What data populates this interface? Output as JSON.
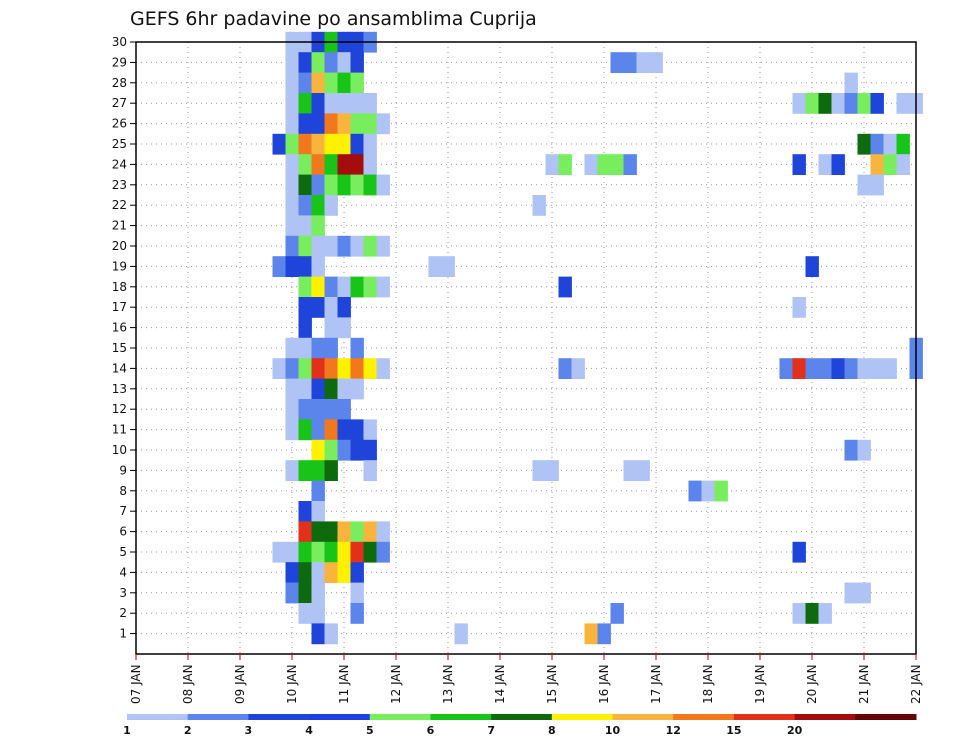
{
  "chart_data": {
    "type": "heatmap",
    "title": "GEFS 6hr padavine po ansamblima Cuprija",
    "xlabel": "",
    "ylabel": "",
    "x_tick_labels": [
      "07 JAN",
      "08 JAN",
      "09 JAN",
      "10 JAN",
      "11 JAN",
      "12 JAN",
      "13 JAN",
      "14 JAN",
      "15 JAN",
      "16 JAN",
      "17 JAN",
      "18 JAN",
      "19 JAN",
      "20 JAN",
      "21 JAN",
      "22 JAN"
    ],
    "y_tick_labels": [
      "1",
      "2",
      "3",
      "4",
      "5",
      "6",
      "7",
      "8",
      "9",
      "10",
      "11",
      "12",
      "13",
      "14",
      "15",
      "16",
      "17",
      "18",
      "19",
      "20",
      "21",
      "22",
      "23",
      "24",
      "25",
      "26",
      "27",
      "28",
      "29",
      "30"
    ],
    "xlim_days": [
      0,
      15
    ],
    "ylim_members": [
      0,
      30
    ],
    "grid": true,
    "legend_placement": "bottom",
    "legend": {
      "labels": [
        "1",
        "2",
        "3",
        "4",
        "5",
        "6",
        "7",
        "8",
        "10",
        "12",
        "15",
        "20"
      ],
      "colors": [
        "#afc3f5",
        "#5b85ea",
        "#1f44d9",
        "#1a40e0",
        "#78ee5f",
        "#19c419",
        "#0d6b0d",
        "#fff100",
        "#f8b43c",
        "#f2781d",
        "#e2301b",
        "#a50d0d",
        "#640505"
      ]
    },
    "bin_colors": {
      "1": "#afc3f5",
      "2": "#5b85ea",
      "3": "#1f44d9",
      "5": "#78ee5f",
      "6": "#19c419",
      "7": "#0d6b0d",
      "8": "#fff100",
      "10": "#f8b43c",
      "12": "#f2781d",
      "15": "#e2301b",
      "20": "#a50d0d"
    },
    "cells": [
      {
        "m": 30,
        "t": [
          [
            3.0,
            1
          ],
          [
            3.25,
            1
          ],
          [
            3.5,
            3
          ],
          [
            3.75,
            6
          ],
          [
            4.0,
            3
          ],
          [
            4.25,
            3
          ],
          [
            4.5,
            2
          ]
        ]
      },
      {
        "m": 29,
        "t": [
          [
            3.0,
            1
          ],
          [
            3.25,
            3
          ],
          [
            3.5,
            5
          ],
          [
            3.75,
            2
          ],
          [
            4.0,
            1
          ],
          [
            4.25,
            3
          ],
          [
            9.25,
            2
          ],
          [
            9.5,
            2
          ],
          [
            9.75,
            1
          ],
          [
            10.0,
            1
          ]
        ]
      },
      {
        "m": 28,
        "t": [
          [
            3.0,
            1
          ],
          [
            3.25,
            2
          ],
          [
            3.5,
            10
          ],
          [
            3.75,
            5
          ],
          [
            4.0,
            6
          ],
          [
            4.25,
            5
          ],
          [
            13.75,
            1
          ]
        ]
      },
      {
        "m": 27,
        "t": [
          [
            3.0,
            1
          ],
          [
            3.25,
            6
          ],
          [
            3.5,
            3
          ],
          [
            3.75,
            1
          ],
          [
            4.0,
            1
          ],
          [
            4.25,
            1
          ],
          [
            4.5,
            1
          ],
          [
            12.75,
            1
          ],
          [
            13.0,
            5
          ],
          [
            13.25,
            7
          ],
          [
            13.5,
            1
          ],
          [
            13.75,
            2
          ],
          [
            14.0,
            5
          ],
          [
            14.25,
            3
          ],
          [
            14.75,
            1
          ],
          [
            15.0,
            1
          ]
        ]
      },
      {
        "m": 26,
        "t": [
          [
            3.0,
            1
          ],
          [
            3.25,
            3
          ],
          [
            3.5,
            3
          ],
          [
            3.75,
            12
          ],
          [
            4.0,
            10
          ],
          [
            4.25,
            5
          ],
          [
            4.5,
            5
          ],
          [
            4.75,
            1
          ]
        ]
      },
      {
        "m": 25,
        "t": [
          [
            2.75,
            3
          ],
          [
            3.0,
            5
          ],
          [
            3.25,
            12
          ],
          [
            3.5,
            10
          ],
          [
            3.75,
            8
          ],
          [
            4.0,
            8
          ],
          [
            4.25,
            3
          ],
          [
            4.5,
            1
          ],
          [
            14.0,
            7
          ],
          [
            14.25,
            2
          ],
          [
            14.5,
            1
          ],
          [
            14.75,
            6
          ]
        ]
      },
      {
        "m": 24,
        "t": [
          [
            3.0,
            1
          ],
          [
            3.25,
            5
          ],
          [
            3.5,
            12
          ],
          [
            3.75,
            6
          ],
          [
            4.0,
            20
          ],
          [
            4.25,
            20
          ],
          [
            4.5,
            1
          ],
          [
            8.0,
            1
          ],
          [
            8.25,
            5
          ],
          [
            8.75,
            1
          ],
          [
            9.0,
            5
          ],
          [
            9.25,
            5
          ],
          [
            9.5,
            2
          ],
          [
            12.75,
            3
          ],
          [
            13.25,
            1
          ],
          [
            13.5,
            3
          ],
          [
            14.25,
            10
          ],
          [
            14.5,
            5
          ],
          [
            14.75,
            1
          ]
        ]
      },
      {
        "m": 23,
        "t": [
          [
            3.0,
            1
          ],
          [
            3.25,
            7
          ],
          [
            3.5,
            2
          ],
          [
            3.75,
            5
          ],
          [
            4.0,
            6
          ],
          [
            4.25,
            5
          ],
          [
            4.5,
            6
          ],
          [
            4.75,
            1
          ],
          [
            14.0,
            1
          ],
          [
            14.25,
            1
          ]
        ]
      },
      {
        "m": 22,
        "t": [
          [
            3.0,
            1
          ],
          [
            3.25,
            2
          ],
          [
            3.5,
            6
          ],
          [
            3.75,
            1
          ],
          [
            7.75,
            1
          ]
        ]
      },
      {
        "m": 21,
        "t": [
          [
            3.0,
            1
          ],
          [
            3.25,
            1
          ],
          [
            3.5,
            5
          ]
        ]
      },
      {
        "m": 20,
        "t": [
          [
            3.0,
            2
          ],
          [
            3.25,
            5
          ],
          [
            3.5,
            1
          ],
          [
            3.75,
            1
          ],
          [
            4.0,
            2
          ],
          [
            4.25,
            1
          ],
          [
            4.5,
            5
          ],
          [
            4.75,
            1
          ]
        ]
      },
      {
        "m": 19,
        "t": [
          [
            2.75,
            2
          ],
          [
            3.0,
            3
          ],
          [
            3.25,
            3
          ],
          [
            3.5,
            1
          ],
          [
            5.75,
            1
          ],
          [
            6.0,
            1
          ],
          [
            13.0,
            3
          ]
        ]
      },
      {
        "m": 18,
        "t": [
          [
            3.25,
            5
          ],
          [
            3.5,
            8
          ],
          [
            3.75,
            2
          ],
          [
            4.0,
            1
          ],
          [
            4.25,
            6
          ],
          [
            4.5,
            5
          ],
          [
            4.75,
            1
          ],
          [
            8.25,
            3
          ]
        ]
      },
      {
        "m": 17,
        "t": [
          [
            3.25,
            3
          ],
          [
            3.5,
            3
          ],
          [
            3.75,
            1
          ],
          [
            4.0,
            3
          ],
          [
            12.75,
            1
          ]
        ]
      },
      {
        "m": 16,
        "t": [
          [
            3.25,
            3
          ],
          [
            3.75,
            1
          ],
          [
            4.0,
            1
          ]
        ]
      },
      {
        "m": 15,
        "t": [
          [
            3.0,
            1
          ],
          [
            3.25,
            1
          ],
          [
            3.5,
            2
          ],
          [
            3.75,
            2
          ],
          [
            4.25,
            2
          ],
          [
            15.0,
            2
          ]
        ]
      },
      {
        "m": 14,
        "t": [
          [
            2.75,
            1
          ],
          [
            3.0,
            2
          ],
          [
            3.25,
            5
          ],
          [
            3.5,
            15
          ],
          [
            3.75,
            12
          ],
          [
            4.0,
            8
          ],
          [
            4.25,
            12
          ],
          [
            4.5,
            8
          ],
          [
            4.75,
            1
          ],
          [
            8.25,
            2
          ],
          [
            8.5,
            1
          ],
          [
            12.5,
            2
          ],
          [
            12.75,
            15
          ],
          [
            13.0,
            2
          ],
          [
            13.25,
            2
          ],
          [
            13.5,
            3
          ],
          [
            13.75,
            2
          ],
          [
            14.0,
            1
          ],
          [
            14.25,
            1
          ],
          [
            14.5,
            1
          ],
          [
            15.0,
            2
          ]
        ]
      },
      {
        "m": 13,
        "t": [
          [
            3.0,
            1
          ],
          [
            3.25,
            1
          ],
          [
            3.5,
            3
          ],
          [
            3.75,
            7
          ],
          [
            4.0,
            1
          ],
          [
            4.25,
            1
          ]
        ]
      },
      {
        "m": 12,
        "t": [
          [
            3.0,
            1
          ],
          [
            3.25,
            2
          ],
          [
            3.5,
            2
          ],
          [
            3.75,
            2
          ],
          [
            4.0,
            2
          ]
        ]
      },
      {
        "m": 11,
        "t": [
          [
            3.0,
            1
          ],
          [
            3.25,
            6
          ],
          [
            3.5,
            2
          ],
          [
            3.75,
            12
          ],
          [
            4.0,
            3
          ],
          [
            4.25,
            3
          ],
          [
            4.5,
            1
          ]
        ]
      },
      {
        "m": 10,
        "t": [
          [
            3.5,
            8
          ],
          [
            3.75,
            5
          ],
          [
            4.0,
            2
          ],
          [
            4.25,
            3
          ],
          [
            4.5,
            3
          ],
          [
            13.75,
            2
          ],
          [
            14.0,
            1
          ]
        ]
      },
      {
        "m": 9,
        "t": [
          [
            3.0,
            1
          ],
          [
            3.25,
            6
          ],
          [
            3.5,
            6
          ],
          [
            3.75,
            7
          ],
          [
            4.5,
            1
          ],
          [
            7.75,
            1
          ],
          [
            8.0,
            1
          ],
          [
            9.5,
            1
          ],
          [
            9.75,
            1
          ]
        ]
      },
      {
        "m": 8,
        "t": [
          [
            3.5,
            2
          ],
          [
            10.75,
            2
          ],
          [
            11.0,
            1
          ],
          [
            11.25,
            5
          ]
        ]
      },
      {
        "m": 7,
        "t": [
          [
            3.25,
            3
          ],
          [
            3.5,
            1
          ]
        ]
      },
      {
        "m": 6,
        "t": [
          [
            3.25,
            15
          ],
          [
            3.5,
            7
          ],
          [
            3.75,
            7
          ],
          [
            4.0,
            10
          ],
          [
            4.25,
            5
          ],
          [
            4.5,
            10
          ],
          [
            4.75,
            1
          ]
        ]
      },
      {
        "m": 5,
        "t": [
          [
            2.75,
            1
          ],
          [
            3.0,
            1
          ],
          [
            3.25,
            6
          ],
          [
            3.5,
            5
          ],
          [
            3.75,
            6
          ],
          [
            4.0,
            8
          ],
          [
            4.25,
            15
          ],
          [
            4.5,
            7
          ],
          [
            4.75,
            2
          ],
          [
            12.75,
            3
          ]
        ]
      },
      {
        "m": 4,
        "t": [
          [
            3.0,
            3
          ],
          [
            3.25,
            7
          ],
          [
            3.5,
            1
          ],
          [
            3.75,
            10
          ],
          [
            4.0,
            8
          ],
          [
            4.25,
            3
          ]
        ]
      },
      {
        "m": 3,
        "t": [
          [
            3.0,
            2
          ],
          [
            3.25,
            7
          ],
          [
            3.5,
            1
          ],
          [
            4.25,
            1
          ],
          [
            13.75,
            1
          ],
          [
            14.0,
            1
          ]
        ]
      },
      {
        "m": 2,
        "t": [
          [
            3.25,
            1
          ],
          [
            3.5,
            1
          ],
          [
            4.25,
            2
          ],
          [
            9.25,
            2
          ],
          [
            12.75,
            1
          ],
          [
            13.0,
            7
          ],
          [
            13.25,
            1
          ]
        ]
      },
      {
        "m": 1,
        "t": [
          [
            3.5,
            3
          ],
          [
            3.75,
            1
          ],
          [
            6.25,
            1
          ],
          [
            8.75,
            10
          ],
          [
            9.0,
            2
          ]
        ]
      }
    ]
  }
}
